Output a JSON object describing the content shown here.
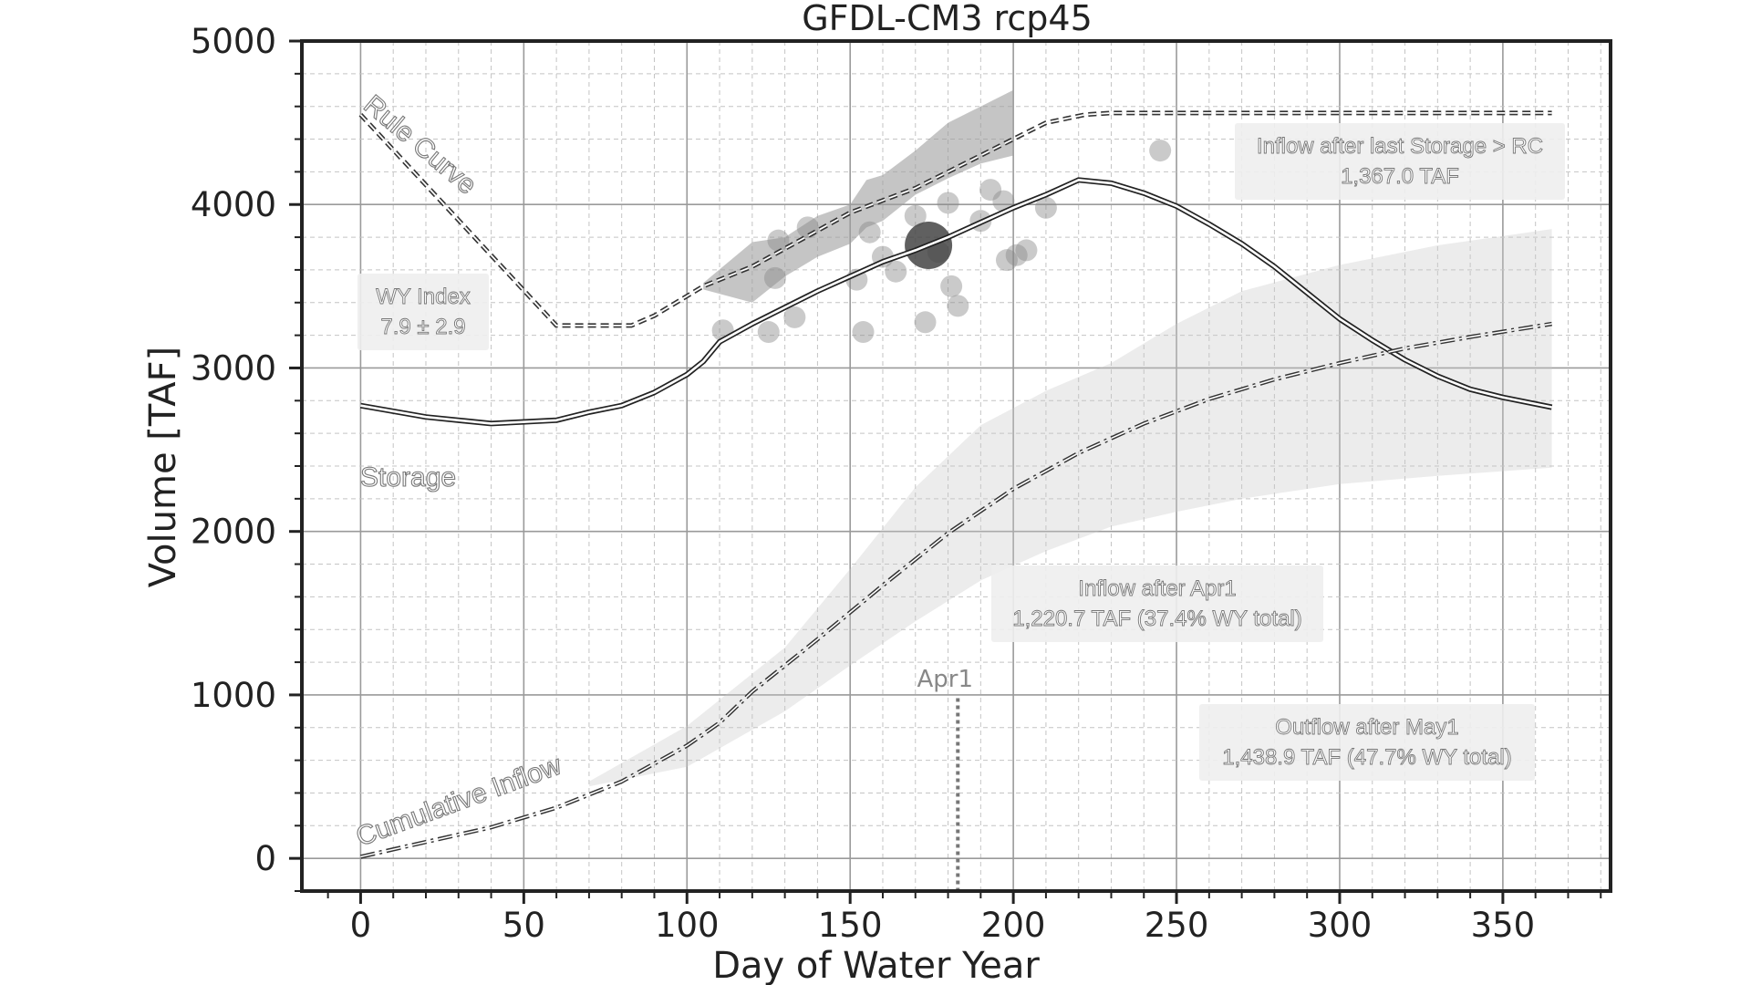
{
  "chart_data": {
    "type": "line",
    "title": "GFDL-CM3 rcp45",
    "xlabel": "Day of Water Year",
    "ylabel": "Volume [TAF]",
    "xlim": [
      -18,
      383
    ],
    "ylim": [
      -200,
      5000
    ],
    "xticks": [
      0,
      50,
      100,
      150,
      200,
      250,
      300,
      350
    ],
    "yticks": [
      0,
      1000,
      2000,
      3000,
      4000,
      5000
    ],
    "grid": true,
    "series": [
      {
        "name": "Rule Curve",
        "style": "dashed",
        "x": [
          0,
          60,
          83,
          90,
          105,
          120,
          150,
          170,
          190,
          200,
          210,
          222,
          230,
          300,
          365
        ],
        "y": [
          4550,
          3260,
          3260,
          3320,
          3500,
          3620,
          3950,
          4100,
          4300,
          4400,
          4500,
          4550,
          4560,
          4560,
          4560
        ]
      },
      {
        "name": "Storage",
        "style": "solid-outline",
        "x": [
          0,
          20,
          40,
          60,
          70,
          80,
          90,
          100,
          105,
          110,
          120,
          130,
          140,
          150,
          160,
          170,
          180,
          190,
          200,
          210,
          220,
          230,
          240,
          250,
          260,
          270,
          280,
          290,
          300,
          310,
          320,
          330,
          340,
          350,
          365
        ],
        "y": [
          2770,
          2700,
          2660,
          2680,
          2730,
          2770,
          2850,
          2960,
          3040,
          3160,
          3270,
          3370,
          3470,
          3560,
          3650,
          3720,
          3800,
          3890,
          3980,
          4060,
          4150,
          4130,
          4070,
          3990,
          3880,
          3760,
          3620,
          3460,
          3300,
          3170,
          3050,
          2950,
          2870,
          2820,
          2760
        ]
      },
      {
        "name": "Cumulative Inflow",
        "style": "dashdot",
        "x": [
          0,
          20,
          40,
          60,
          80,
          100,
          110,
          120,
          140,
          160,
          180,
          200,
          220,
          240,
          260,
          280,
          300,
          320,
          340,
          365
        ],
        "y": [
          10,
          100,
          190,
          310,
          470,
          690,
          830,
          1020,
          1340,
          1670,
          1990,
          2260,
          2480,
          2660,
          2810,
          2930,
          3030,
          3120,
          3190,
          3270
        ]
      }
    ],
    "bands": [
      {
        "name": "inflow-range",
        "x": [
          70,
          100,
          130,
          150,
          170,
          190,
          210,
          230,
          250,
          270,
          300,
          330,
          365
        ],
        "lower": [
          440,
          560,
          900,
          1180,
          1450,
          1700,
          1880,
          2030,
          2120,
          2200,
          2290,
          2340,
          2390
        ],
        "upper": [
          470,
          810,
          1290,
          1770,
          2270,
          2650,
          2860,
          3030,
          3270,
          3470,
          3630,
          3750,
          3850
        ]
      },
      {
        "name": "rule-curve-range",
        "x": [
          105,
          120,
          130,
          140,
          150,
          155,
          160,
          170,
          180,
          190,
          200
        ],
        "lower": [
          3480,
          3400,
          3560,
          3680,
          3760,
          3860,
          3900,
          4060,
          4160,
          4250,
          4300
        ],
        "upper": [
          3520,
          3770,
          3800,
          3930,
          4000,
          4150,
          4180,
          4330,
          4500,
          4600,
          4700
        ]
      }
    ],
    "scatter": {
      "name": "historical-storage-points",
      "points": [
        {
          "x": 111,
          "y": 3230
        },
        {
          "x": 125,
          "y": 3220
        },
        {
          "x": 127,
          "y": 3550
        },
        {
          "x": 128,
          "y": 3780
        },
        {
          "x": 133,
          "y": 3310
        },
        {
          "x": 137,
          "y": 3860
        },
        {
          "x": 152,
          "y": 3540
        },
        {
          "x": 154,
          "y": 3220
        },
        {
          "x": 156,
          "y": 3830
        },
        {
          "x": 160,
          "y": 3680
        },
        {
          "x": 164,
          "y": 3590
        },
        {
          "x": 170,
          "y": 3930
        },
        {
          "x": 173,
          "y": 3280
        },
        {
          "x": 177,
          "y": 3710
        },
        {
          "x": 180,
          "y": 4010
        },
        {
          "x": 181,
          "y": 3500
        },
        {
          "x": 183,
          "y": 3380
        },
        {
          "x": 190,
          "y": 3900
        },
        {
          "x": 193,
          "y": 4090
        },
        {
          "x": 197,
          "y": 4020
        },
        {
          "x": 198,
          "y": 3660
        },
        {
          "x": 201,
          "y": 3690
        },
        {
          "x": 204,
          "y": 3720
        },
        {
          "x": 210,
          "y": 3980
        },
        {
          "x": 245,
          "y": 4330
        }
      ],
      "highlight": {
        "x": 174,
        "y": 3750
      }
    },
    "marker_line": {
      "label": "Apr1",
      "x": 183
    },
    "series_labels": {
      "rule_curve": "Rule Curve",
      "storage": "Storage",
      "cumulative_inflow": "Cumulative Inflow"
    },
    "annotations": [
      {
        "id": "wy-index",
        "lines": [
          "WY Index",
          "7.9 ± 2.9"
        ]
      },
      {
        "id": "inflow-after-last-storage",
        "lines": [
          "Inflow after last Storage > RC",
          "1,367.0 TAF"
        ]
      },
      {
        "id": "inflow-after-apr1",
        "lines": [
          "Inflow after Apr1",
          "1,220.7 TAF (37.4% WY total)"
        ]
      },
      {
        "id": "outflow-after-may1",
        "lines": [
          "Outflow after May1",
          "1,438.9 TAF (47.7% WY total)"
        ]
      }
    ]
  }
}
